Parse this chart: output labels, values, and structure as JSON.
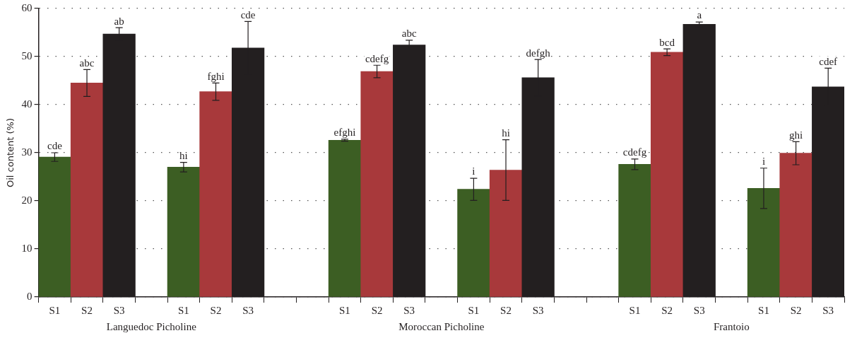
{
  "chart_data": {
    "type": "bar",
    "categories": [
      "S1",
      "S2",
      "S3",
      null,
      "S1",
      "S2",
      "S3",
      null,
      null,
      "S1",
      "S2",
      "S3",
      null,
      "S1",
      "S2",
      "S3",
      null,
      null,
      "S1",
      "S2",
      "S3",
      null,
      "S1",
      "S2",
      "S3"
    ],
    "values": [
      29.1,
      44.5,
      54.7,
      null,
      27.0,
      42.7,
      51.8,
      null,
      null,
      32.6,
      46.9,
      52.4,
      null,
      22.4,
      26.4,
      45.6,
      null,
      null,
      27.6,
      50.9,
      56.7,
      null,
      22.6,
      29.9,
      43.7
    ],
    "errors": [
      0.9,
      2.8,
      1.3,
      null,
      1.0,
      1.8,
      5.5,
      null,
      null,
      0.2,
      1.3,
      1.0,
      null,
      2.3,
      6.3,
      3.8,
      null,
      null,
      1.1,
      0.7,
      0.5,
      null,
      4.2,
      2.4,
      3.9
    ],
    "value_labels": [
      "cde",
      "abc",
      "ab",
      null,
      "hi",
      "fghi",
      "cde",
      null,
      null,
      "efghi",
      "cdefg",
      "abc",
      null,
      "i",
      "hi",
      "defgh",
      null,
      null,
      "cdefg",
      "bcd",
      "a",
      null,
      "i",
      "ghi",
      "cdef"
    ],
    "colors": [
      "#3c5e23",
      "#a8393b",
      "#231f20",
      null,
      "#3c5e23",
      "#a8393b",
      "#231f20",
      null,
      null,
      "#3c5e23",
      "#a8393b",
      "#231f20",
      null,
      "#3c5e23",
      "#a8393b",
      "#231f20",
      null,
      null,
      "#3c5e23",
      "#a8393b",
      "#231f20",
      null,
      "#3c5e23",
      "#a8393b",
      "#231f20"
    ],
    "ylabel": "Oil content (%)",
    "ylim": [
      0,
      60
    ],
    "yticks": [
      0,
      10,
      20,
      30,
      40,
      50,
      60
    ],
    "grid": "y",
    "legend": false,
    "annotations": [
      "Languedoc Picholine",
      "Moroccan Picholine",
      "Frantoio"
    ]
  }
}
